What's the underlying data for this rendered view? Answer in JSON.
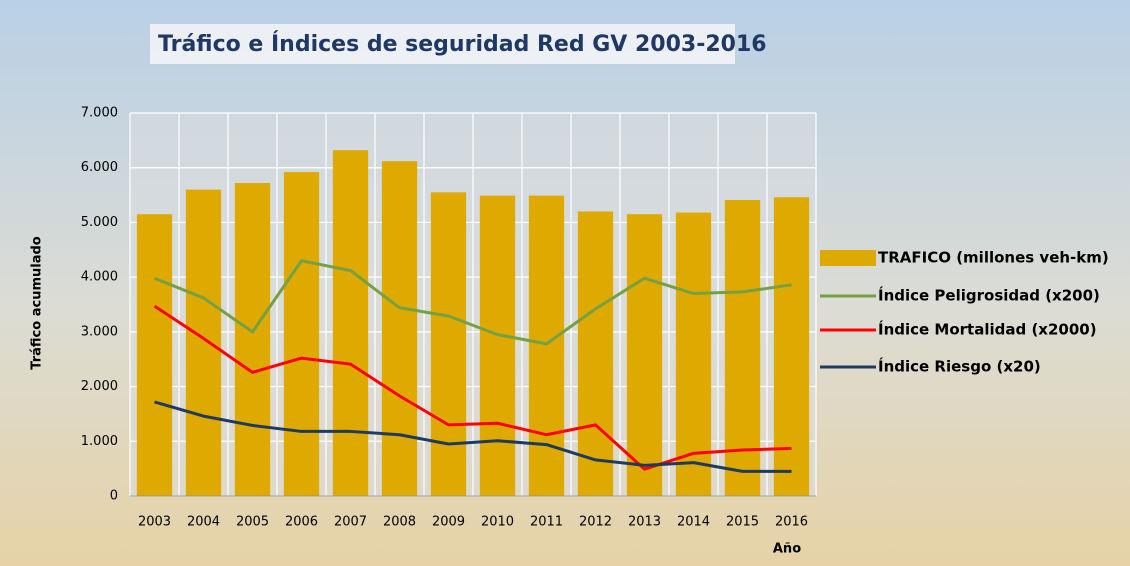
{
  "chart_data": {
    "type": "bar",
    "title": "Tráfico e Índices de seguridad Red GV 2003-2016",
    "ylabel": "Tráfico acumulado",
    "xlabel": "Año",
    "categories": [
      "2003",
      "2004",
      "2005",
      "2006",
      "2007",
      "2008",
      "2009",
      "2010",
      "2011",
      "2012",
      "2013",
      "2014",
      "2015",
      "2016"
    ],
    "series": [
      {
        "name": "TRAFICO (millones veh-km)",
        "type": "bar",
        "color": "#dea900",
        "values": [
          5150,
          5600,
          5720,
          5920,
          6320,
          6120,
          5550,
          5490,
          5490,
          5200,
          5150,
          5180,
          5410,
          5460
        ]
      },
      {
        "name": "Índice Peligrosidad (x200)",
        "type": "line",
        "color": "#77a043",
        "values": [
          3980,
          3620,
          3000,
          4300,
          4120,
          3440,
          3290,
          2950,
          2780,
          3420,
          3980,
          3700,
          3730,
          3860
        ]
      },
      {
        "name": "Índice Mortalidad (x2000)",
        "type": "line",
        "color": "#ff0000",
        "values": [
          3470,
          2880,
          2260,
          2520,
          2410,
          1830,
          1300,
          1330,
          1120,
          1300,
          490,
          780,
          840,
          870
        ]
      },
      {
        "name": "Índice Riesgo (x20)",
        "type": "line",
        "color": "#1f3a5f",
        "values": [
          1720,
          1460,
          1290,
          1180,
          1180,
          1120,
          950,
          1010,
          940,
          660,
          560,
          610,
          450,
          450
        ]
      }
    ],
    "ylim": [
      0,
      7000
    ],
    "yticks": [
      0,
      {
        "value": 1000,
        "label": "1.000"
      },
      {
        "value": 2000,
        "label": "2.000"
      },
      {
        "value": 3000,
        "label": "3.000"
      },
      {
        "value": 4000,
        "label": "4.000"
      },
      {
        "value": 5000,
        "label": "5.000"
      },
      {
        "value": 6000,
        "label": "6.000"
      },
      {
        "value": 7000,
        "label": "7.000"
      }
    ],
    "grid": true,
    "legend": "right"
  }
}
